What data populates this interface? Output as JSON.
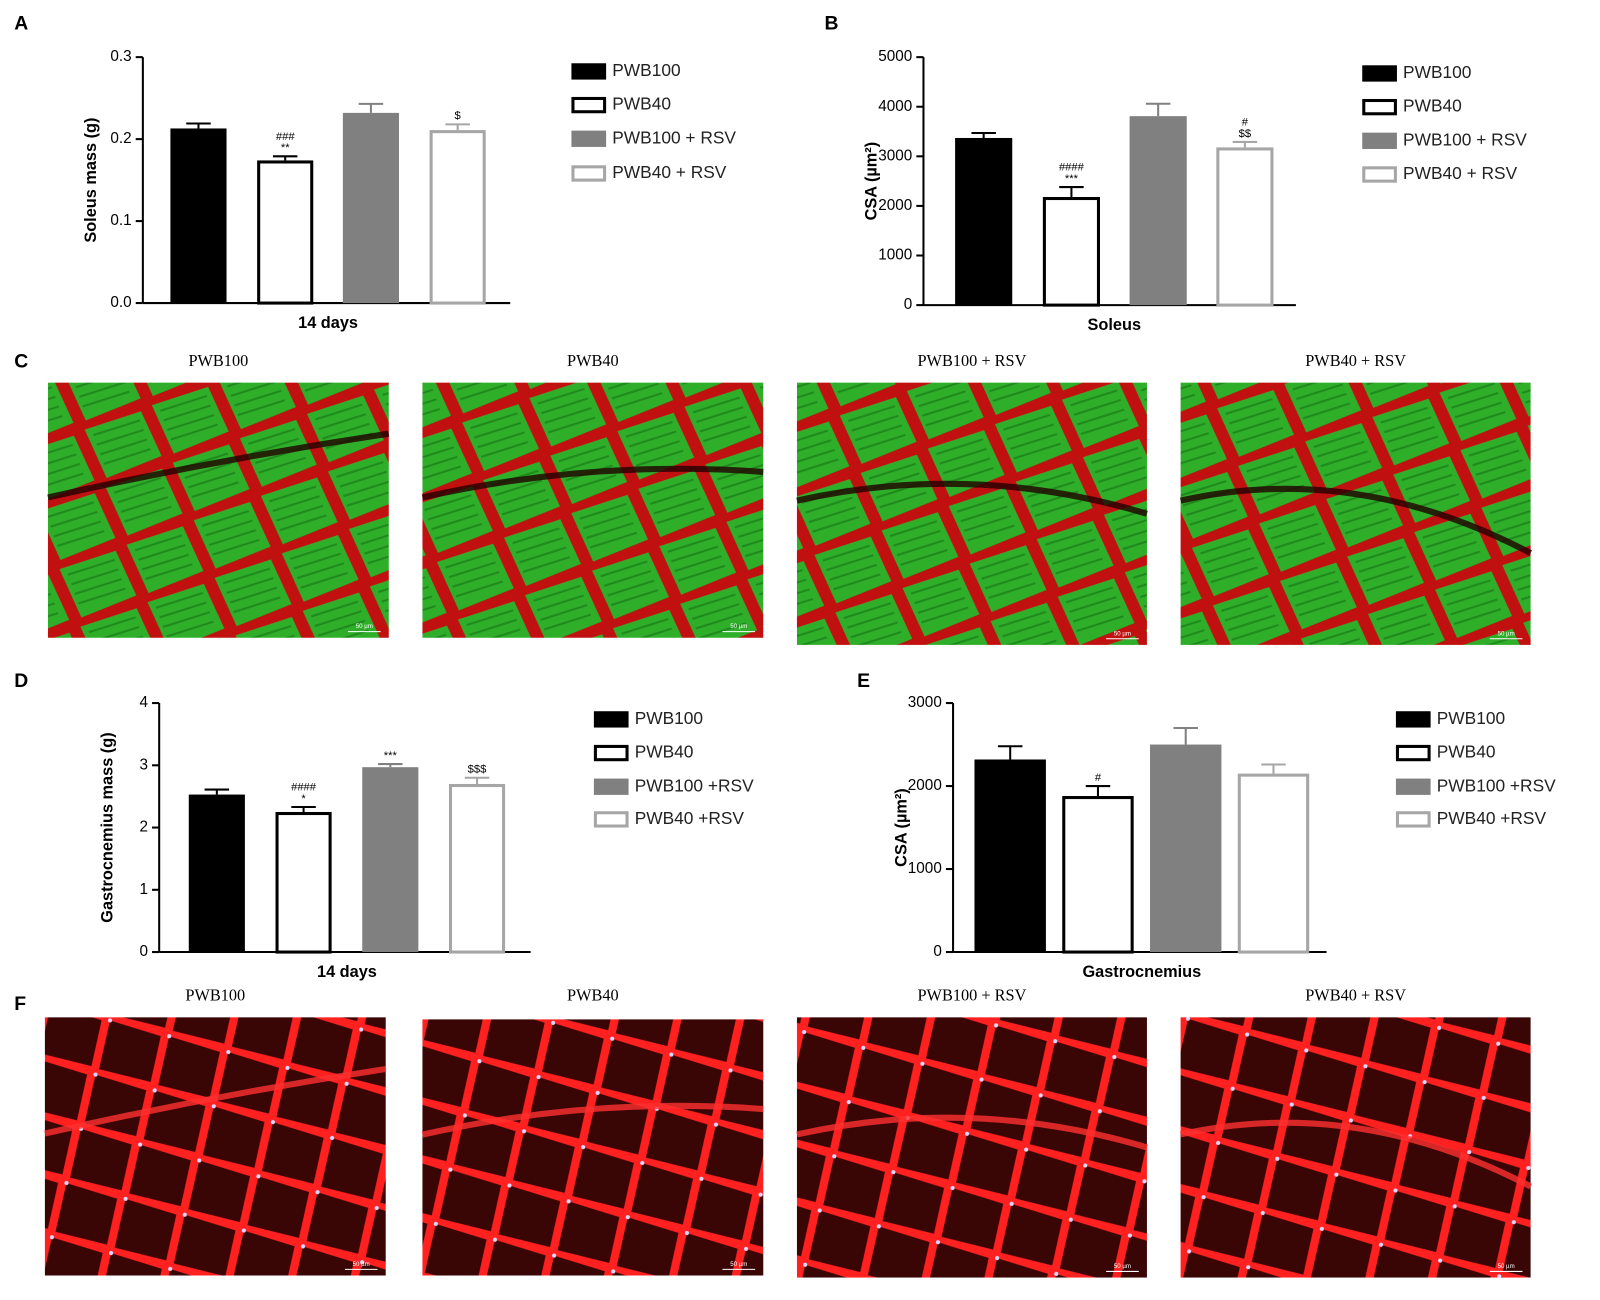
{
  "chart_data": [
    {
      "type": "bar",
      "panel": "A",
      "ylabel": "Soleus mass (g)",
      "xlabel": "14 days",
      "categories": [
        "PWB100",
        "PWB40",
        "PWB100 + RSV",
        "PWB40 + RSV"
      ],
      "values": [
        0.213,
        0.174,
        0.232,
        0.211
      ],
      "errors": [
        0.006,
        0.005,
        0.011,
        0.007
      ],
      "annotations": [
        null,
        [
          "###",
          "**"
        ],
        null,
        [
          "$"
        ]
      ],
      "colors": [
        "#000000",
        "#000000",
        "#808080",
        "#a6a6a6"
      ],
      "filled": [
        true,
        false,
        true,
        false
      ],
      "ylim": [
        0,
        0.3
      ],
      "yticks": [
        {
          "value": 0,
          "label": "0.0"
        },
        0.1,
        0.2,
        0.3
      ]
    },
    {
      "type": "bar",
      "panel": "B",
      "ylabel": "CSA (µm²)",
      "xlabel": "Soleus",
      "categories": [
        "PWB100",
        "PWB40",
        "PWB100 + RSV",
        "PWB40 + RSV"
      ],
      "values": [
        3370,
        2180,
        3810,
        3180
      ],
      "errors": [
        100,
        200,
        250,
        110
      ],
      "annotations": [
        null,
        [
          "####",
          "***"
        ],
        null,
        [
          "#",
          "$$"
        ]
      ],
      "colors": [
        "#000000",
        "#000000",
        "#808080",
        "#a6a6a6"
      ],
      "filled": [
        true,
        false,
        true,
        false
      ],
      "ylim": [
        0,
        5000
      ],
      "yticks": [
        0,
        1000,
        2000,
        3000,
        4000,
        5000
      ]
    },
    {
      "type": "bar",
      "panel": "D",
      "ylabel": "Gastrocnemius mass (g)",
      "xlabel": "14 days",
      "categories": [
        "PWB100",
        "PWB40",
        "PWB100 +RSV",
        "PWB40 +RSV"
      ],
      "values": [
        2.53,
        2.25,
        2.97,
        2.7
      ],
      "errors": [
        0.08,
        0.08,
        0.05,
        0.1
      ],
      "annotations": [
        null,
        [
          "####",
          "*"
        ],
        [
          "***"
        ],
        [
          "$$$"
        ]
      ],
      "colors": [
        "#000000",
        "#000000",
        "#808080",
        "#a6a6a6"
      ],
      "filled": [
        true,
        false,
        true,
        false
      ],
      "ylim": [
        0,
        4
      ],
      "yticks": [
        0,
        1,
        2,
        3,
        4
      ]
    },
    {
      "type": "bar",
      "panel": "E",
      "ylabel": "CSA (µm²)",
      "xlabel": "Gastrocnemius",
      "categories": [
        "PWB100",
        "PWB40",
        "PWB100 +RSV",
        "PWB40 +RSV"
      ],
      "values": [
        2320,
        1880,
        2500,
        2150
      ],
      "errors": [
        160,
        120,
        200,
        110
      ],
      "annotations": [
        null,
        [
          "#"
        ],
        null,
        null
      ],
      "colors": [
        "#000000",
        "#000000",
        "#808080",
        "#a6a6a6"
      ],
      "filled": [
        true,
        false,
        true,
        false
      ],
      "ylim": [
        0,
        3000
      ],
      "yticks": [
        0,
        1000,
        2000,
        3000
      ]
    }
  ],
  "panels": [
    {
      "label": "C",
      "titles": [
        "PWB100",
        "PWB40",
        "PWB100 + RSV",
        "PWB40 + RSV"
      ],
      "scale_bar": "50 µm"
    },
    {
      "label": "F",
      "titles": [
        "PWB100",
        "PWB40",
        "PWB100 + RSV",
        "PWB40 + RSV"
      ],
      "scale_bar": "50 µm"
    }
  ]
}
